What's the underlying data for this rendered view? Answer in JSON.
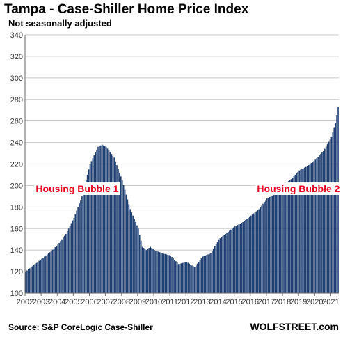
{
  "chart_data": {
    "type": "bar",
    "title": "Tampa - Case-Shiller Home Price Index",
    "subtitle": "Not seasonally adjusted",
    "source": "Source: S&P CoreLogic Case-Shiller",
    "brand": "WOLFSTREET.com",
    "ylim": [
      100,
      340
    ],
    "yticks": [
      100,
      120,
      140,
      160,
      180,
      200,
      220,
      240,
      260,
      280,
      300,
      320,
      340
    ],
    "xticks": [
      "2002",
      "2003",
      "2004",
      "2005",
      "2006",
      "2007",
      "2008",
      "2009",
      "2010",
      "2011",
      "2012",
      "2013",
      "2014",
      "2015",
      "2016",
      "2017",
      "2018",
      "2019",
      "2020",
      "2021"
    ],
    "grid": "horizontal",
    "bar_color": "#1f3f73",
    "annotation_color": "#e8001c",
    "annotations": [
      {
        "text": "Housing Bubble 1",
        "x": "2002-09",
        "y": 197
      },
      {
        "text": "Housing Bubble 2",
        "x": "2016-06",
        "y": 197
      }
    ],
    "series": [
      {
        "frequency": "monthly",
        "start": "2002-01",
        "anchors": [
          [
            "2002-01",
            120
          ],
          [
            "2002-07",
            126
          ],
          [
            "2003-01",
            132
          ],
          [
            "2003-07",
            138
          ],
          [
            "2004-01",
            145
          ],
          [
            "2004-07",
            155
          ],
          [
            "2005-01",
            170
          ],
          [
            "2005-07",
            190
          ],
          [
            "2006-01",
            220
          ],
          [
            "2006-07",
            236
          ],
          [
            "2006-10",
            238
          ],
          [
            "2007-01",
            236
          ],
          [
            "2007-07",
            226
          ],
          [
            "2008-01",
            205
          ],
          [
            "2008-07",
            178
          ],
          [
            "2009-01",
            160
          ],
          [
            "2009-04",
            143
          ],
          [
            "2009-07",
            140
          ],
          [
            "2009-10",
            143
          ],
          [
            "2010-01",
            140
          ],
          [
            "2010-07",
            137
          ],
          [
            "2011-01",
            135
          ],
          [
            "2011-07",
            127
          ],
          [
            "2012-01",
            129
          ],
          [
            "2012-07",
            124
          ],
          [
            "2013-01",
            134
          ],
          [
            "2013-07",
            137
          ],
          [
            "2014-01",
            150
          ],
          [
            "2014-07",
            156
          ],
          [
            "2015-01",
            162
          ],
          [
            "2015-07",
            166
          ],
          [
            "2016-01",
            172
          ],
          [
            "2016-07",
            178
          ],
          [
            "2017-01",
            188
          ],
          [
            "2017-07",
            192
          ],
          [
            "2018-01",
            200
          ],
          [
            "2018-07",
            206
          ],
          [
            "2019-01",
            214
          ],
          [
            "2019-07",
            218
          ],
          [
            "2020-01",
            224
          ],
          [
            "2020-07",
            232
          ],
          [
            "2021-01",
            245
          ],
          [
            "2021-04",
            258
          ],
          [
            "2021-06",
            273
          ]
        ]
      }
    ]
  }
}
